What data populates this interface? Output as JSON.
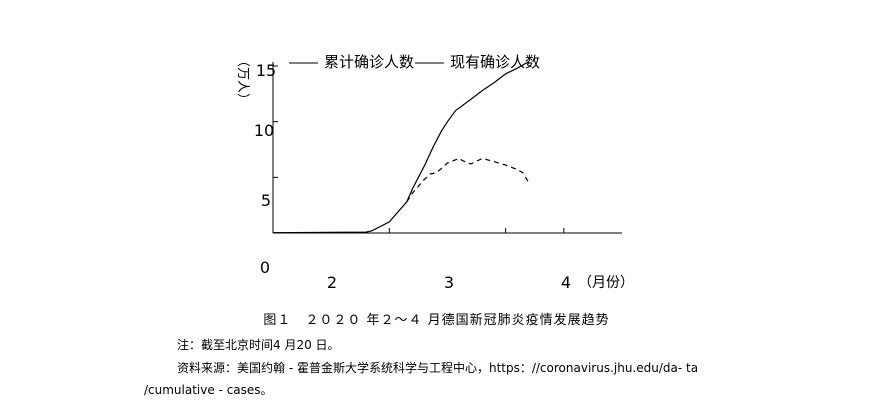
{
  "chart_data": {
    "type": "line",
    "ylabel": "（万人）",
    "xunit": "（月份）",
    "yticks": [
      "0",
      "5",
      "10",
      "15"
    ],
    "xticks": [
      "2",
      "3",
      "4"
    ],
    "ylim": [
      0,
      15
    ],
    "xlim": [
      2,
      5
    ],
    "grid": false,
    "legend_position": "top",
    "series": [
      {
        "name": "累计确诊人数",
        "style": "solid",
        "color": "#000000",
        "x": [
          2.0,
          2.8,
          2.85,
          3.0,
          3.15,
          3.2,
          3.3,
          3.38,
          3.45,
          3.5,
          3.57,
          3.7,
          3.8,
          3.9,
          4.0,
          4.1,
          4.2
        ],
        "y": [
          0.03,
          0.08,
          0.2,
          1.0,
          2.8,
          4.0,
          6.0,
          7.8,
          9.2,
          10.0,
          11.0,
          12.0,
          12.8,
          13.5,
          14.3,
          14.8,
          15.4
        ]
      },
      {
        "name": "现有确诊人数",
        "style": "dashed",
        "color": "#000000",
        "x": [
          3.15,
          3.2,
          3.3,
          3.35,
          3.4,
          3.45,
          3.5,
          3.6,
          3.63,
          3.7,
          3.8,
          3.9,
          4.0,
          4.1,
          4.15,
          4.2
        ],
        "y": [
          2.8,
          3.6,
          4.8,
          5.3,
          5.4,
          5.8,
          6.3,
          6.7,
          6.5,
          6.2,
          6.7,
          6.4,
          6.1,
          5.7,
          5.4,
          4.5
        ]
      }
    ]
  },
  "caption": "图１　２０２０ 年２～４ 月德国新冠肺炎疫情发展趋势",
  "note": "注：截至北京时间4 月20 日。",
  "source_line1": "资料来源：美国约翰 - 霍普金斯大学系统科学与工程中心，https：//coronavirus.jhu.edu/da- ta",
  "source_line2": "/cumulative - cases。"
}
